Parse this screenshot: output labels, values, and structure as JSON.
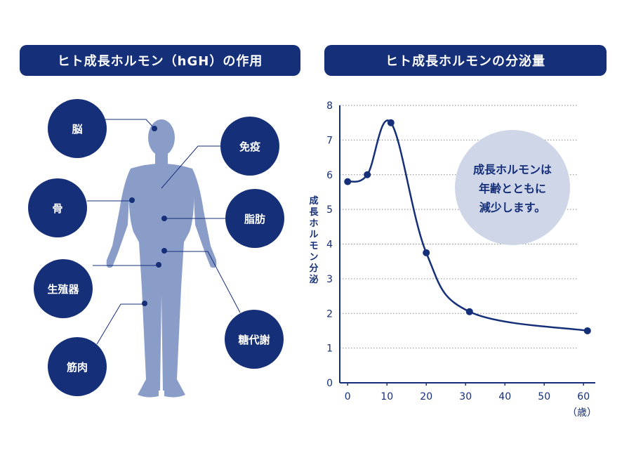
{
  "left_panel": {
    "title": "ヒト成長ホルモン（hGH）の作用",
    "organs": [
      {
        "key": "brain",
        "label": "脳"
      },
      {
        "key": "immunity",
        "label": "免疫"
      },
      {
        "key": "bone",
        "label": "骨"
      },
      {
        "key": "fat",
        "label": "脂肪"
      },
      {
        "key": "reproductive",
        "label": "生殖器"
      },
      {
        "key": "sugar_metabolism",
        "label": "糖代謝"
      },
      {
        "key": "muscle",
        "label": "筋肉"
      }
    ]
  },
  "right_panel": {
    "title": "ヒト成長ホルモンの分泌量",
    "callout_lines": [
      "成長ホルモンは",
      "年齢とともに",
      "減少します。"
    ]
  },
  "colors": {
    "navy": "#152f78",
    "body": "#8a9dc9",
    "callout": "#cfd6e8"
  },
  "chart_data": {
    "type": "line",
    "title": "ヒト成長ホルモンの分泌量",
    "xlabel": "（歳）",
    "ylabel": "成長ホルモン分泌",
    "x_ticks": [
      0,
      10,
      20,
      30,
      40,
      50,
      60
    ],
    "y_ticks": [
      0,
      1,
      2,
      3,
      4,
      5,
      6,
      7,
      8
    ],
    "xlim": [
      -2,
      63
    ],
    "ylim": [
      0,
      8
    ],
    "grid": "horizontal-dotted",
    "series": [
      {
        "x": [
          0,
          5,
          11,
          20,
          31,
          61
        ],
        "y": [
          5.8,
          6.0,
          7.5,
          3.75,
          2.05,
          1.5
        ]
      }
    ]
  }
}
